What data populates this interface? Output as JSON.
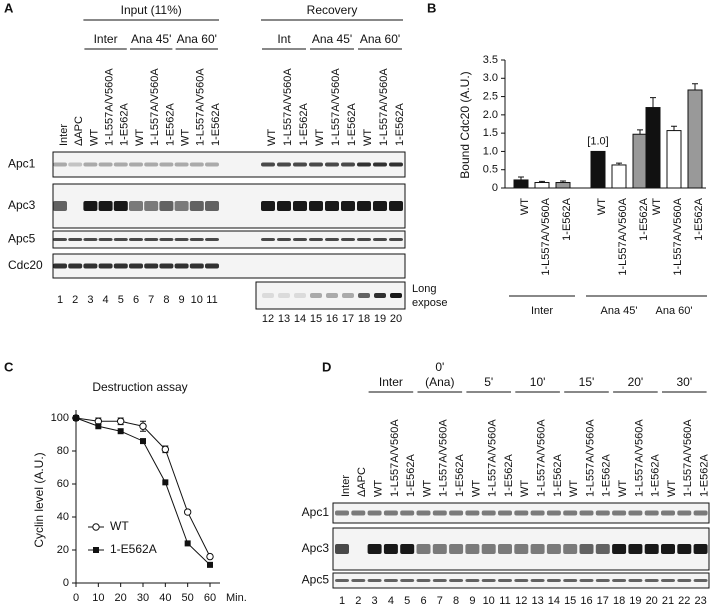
{
  "panel_labels": [
    "A",
    "B",
    "C",
    "D"
  ],
  "blot_a": {
    "header_groups": [
      {
        "title": "Input (11%)",
        "subgroups": [
          "Inter",
          "Ana 45'",
          "Ana 60'"
        ]
      },
      {
        "title": "Recovery",
        "subgroups": [
          "Int",
          "Ana 45'",
          "Ana 60'"
        ]
      }
    ],
    "lanes": [
      "Inter",
      "ΔAPC",
      "WT",
      "1-L557A/V560A",
      "1-E562A",
      "WT",
      "1-L557A/V560A",
      "1-E562A",
      "WT",
      "1-L557A/V560A",
      "1-E562A",
      "WT",
      "1-L557A/V560A",
      "1-E562A",
      "WT",
      "1-L557A/V560A",
      "1-E562A",
      "WT",
      "1-L557A/V560A",
      "1-E562A"
    ],
    "rows": [
      "Apc1",
      "Apc3",
      "Apc5",
      "Cdc20"
    ],
    "lane_numbers": [
      1,
      2,
      3,
      4,
      5,
      6,
      7,
      8,
      9,
      10,
      11,
      12,
      13,
      14,
      15,
      16,
      17,
      18,
      19,
      20
    ],
    "long_expose": [
      "Long",
      "expose"
    ]
  },
  "blot_d": {
    "headers": [
      [
        "Inter"
      ],
      [
        "0'",
        "(Ana)"
      ],
      [
        "5'"
      ],
      [
        "10'"
      ],
      [
        "15'"
      ],
      [
        "20'"
      ],
      [
        "30'"
      ]
    ],
    "lanes": [
      "Inter",
      "ΔAPC",
      "WT",
      "1-L557A/V560A",
      "1-E562A",
      "WT",
      "1-L557A/V560A",
      "1-E562A",
      "WT",
      "1-L557A/V560A",
      "1-E562A",
      "WT",
      "1-L557A/V560A",
      "1-E562A",
      "WT",
      "1-L557A/V560A",
      "1-E562A",
      "WT",
      "1-L557A/V560A",
      "1-E562A",
      "WT",
      "1-L557A/V560A",
      "1-E562A"
    ],
    "rows": [
      "Apc1",
      "Apc3",
      "Apc5"
    ],
    "lane_numbers": [
      1,
      2,
      3,
      4,
      5,
      6,
      7,
      8,
      9,
      10,
      11,
      12,
      13,
      14,
      15,
      16,
      17,
      18,
      19,
      20,
      21,
      22,
      23
    ]
  },
  "chart_data": [
    {
      "type": "bar",
      "y_label": "Bound Cdc20 (A.U.)",
      "ylim": [
        0,
        3.5
      ],
      "yticks": [
        0,
        0.5,
        {
          "value": 1,
          "label": "1.0"
        },
        1.5,
        {
          "value": 2,
          "label": "2.0"
        },
        2.5,
        {
          "value": 3,
          "label": "3.0"
        },
        3.5
      ],
      "colors": [
        "#111111",
        "#ffffff",
        "#999999"
      ],
      "groups": [
        {
          "name": "Inter",
          "categories": [
            "WT",
            "1-L557A/V560A",
            "1-E562A"
          ],
          "values": [
            0.22,
            0.15,
            0.15
          ],
          "errors": [
            0.08,
            0.03,
            0.04
          ]
        },
        {
          "name": "Ana 45'",
          "categories": [
            "WT",
            "1-L557A/V560A",
            "1-E562A"
          ],
          "values": [
            1.0,
            0.63,
            1.47
          ],
          "errors": [
            0,
            0.05,
            0.12
          ]
        },
        {
          "name": "Ana 60'",
          "categories": [
            "WT",
            "1-L557A/V560A",
            "1-E562A"
          ],
          "values": [
            2.2,
            1.57,
            2.68
          ],
          "errors": [
            0.27,
            0.12,
            0.17
          ]
        }
      ],
      "annotation": "[1.0]"
    },
    {
      "type": "line",
      "title": "Destruction assay",
      "y_label": "Cyclin level (A.U.)",
      "x_label": "Min.",
      "x": [
        0,
        10,
        20,
        30,
        40,
        50,
        60
      ],
      "xlim": [
        0,
        60
      ],
      "xticks": [
        0,
        10,
        20,
        30,
        40,
        50,
        60
      ],
      "ylim": [
        0,
        100
      ],
      "yticks": [
        0,
        20,
        40,
        60,
        80,
        100
      ],
      "series": [
        {
          "name": "WT",
          "marker": "open-circle",
          "values": [
            100,
            98,
            98,
            95,
            81,
            43,
            16
          ],
          "errors": [
            0,
            2,
            2,
            3,
            2,
            1,
            1
          ]
        },
        {
          "name": "1-E562A",
          "marker": "filled-square",
          "values": [
            100,
            95,
            92,
            86,
            61,
            24,
            11
          ]
        }
      ]
    }
  ]
}
